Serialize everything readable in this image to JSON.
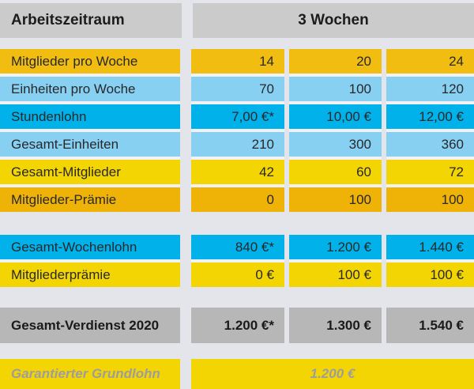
{
  "table": {
    "header": {
      "label": "Arbeitszeitraum",
      "period": "3 Wochen"
    },
    "rows": [
      {
        "label": "Mitglieder pro Woche",
        "values": [
          "14",
          "20",
          "24"
        ]
      },
      {
        "label": "Einheiten pro Woche",
        "values": [
          "70",
          "100",
          "120"
        ]
      },
      {
        "label": "Stundenlohn",
        "values": [
          "7,00 €*",
          "10,00 €",
          "12,00 €"
        ]
      },
      {
        "label": "Gesamt-Einheiten",
        "values": [
          "210",
          "300",
          "360"
        ]
      },
      {
        "label": "Gesamt-Mitglieder",
        "values": [
          "42",
          "60",
          "72"
        ]
      },
      {
        "label": "Mitglieder-Prämie",
        "values": [
          "0",
          "100",
          "100"
        ]
      },
      {
        "label": "Gesamt-Wochenlohn",
        "values": [
          "840 €*",
          "1.200 €",
          "1.440 €"
        ]
      },
      {
        "label": "Mitgliederprämie",
        "values": [
          "0 €",
          "100 €",
          "100 €"
        ]
      }
    ],
    "total_row": {
      "label": "Gesamt-Verdienst 2020",
      "values": [
        "1.200 €*",
        "1.300 €",
        "1.540 €"
      ]
    },
    "footer_row": {
      "label": "Garantierter Grundlohn",
      "value": "1.200 €"
    }
  },
  "colors": {
    "header_gray": "#CBCBCB",
    "total_gray": "#B7B7B7",
    "gold": "#F1BD11",
    "amber": "#EFB307",
    "yellow": "#F3D503",
    "light_blue": "#88D0F1",
    "cyan": "#00B2E9",
    "page_bg": "#E4E4EB",
    "separator": "#F2F2F6",
    "footer_text": "#9D9DA0"
  },
  "chart_data": {
    "type": "table",
    "title": "Arbeitszeitraum",
    "period_header": "3 Wochen",
    "rows": [
      {
        "label": "Mitglieder pro Woche",
        "values": [
          14,
          20,
          24
        ]
      },
      {
        "label": "Einheiten pro Woche",
        "values": [
          70,
          100,
          120
        ]
      },
      {
        "label": "Stundenlohn",
        "values": [
          "7,00 €*",
          "10,00 €",
          "12,00 €"
        ]
      },
      {
        "label": "Gesamt-Einheiten",
        "values": [
          210,
          300,
          360
        ]
      },
      {
        "label": "Gesamt-Mitglieder",
        "values": [
          42,
          60,
          72
        ]
      },
      {
        "label": "Mitglieder-Prämie",
        "values": [
          0,
          100,
          100
        ]
      },
      {
        "label": "Gesamt-Wochenlohn",
        "values": [
          "840 €*",
          "1.200 €",
          "1.440 €"
        ]
      },
      {
        "label": "Mitgliederprämie",
        "values": [
          "0 €",
          "100 €",
          "100 €"
        ]
      },
      {
        "label": "Gesamt-Verdienst 2020",
        "values": [
          "1.200 €*",
          "1.300 €",
          "1.540 €"
        ]
      },
      {
        "label": "Garantierter Grundlohn",
        "values": [
          "1.200 €"
        ]
      }
    ]
  }
}
